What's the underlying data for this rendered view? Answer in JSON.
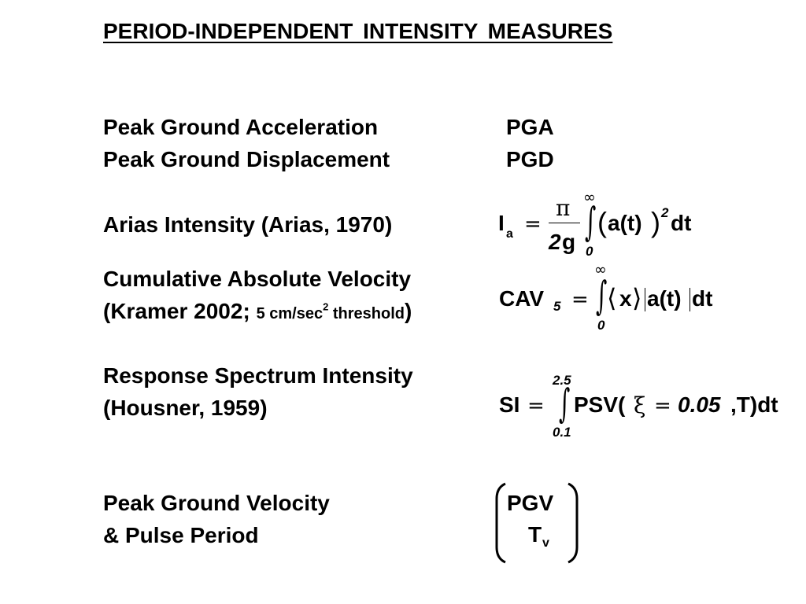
{
  "title": "PERIOD-INDEPENDENT  INTENSITY  MEASURES",
  "rows": {
    "pga": {
      "label": "Peak Ground Acceleration",
      "symbol": "PGA"
    },
    "pgd": {
      "label": "Peak Ground Displacement",
      "symbol": "PGD"
    },
    "arias": {
      "label": "Arias Intensity (Arias, 1970)",
      "lhs": "I",
      "lhs_sub": "a",
      "equals": "=",
      "numerator": "π",
      "denominator_num": "2",
      "denominator_var": "g",
      "upper": "∞",
      "lower": "0",
      "integral": "∫",
      "integrand_open": "(",
      "integrand_body": "a(t)",
      "integrand_close": ")",
      "power": "2",
      "dt": "dt"
    },
    "cav": {
      "label_line1": "Cumulative Absolute Velocity",
      "label_line2_prefix": "(Kramer 2002; ",
      "label_line2_small": "5 cm/sec",
      "label_line2_sup": "2",
      "label_line2_small2": " threshold",
      "label_line2_suffix": ")",
      "lhs": "CAV",
      "lhs_sub": "5",
      "equals": "=",
      "upper": "∞",
      "lower": "0",
      "integral": "∫",
      "angle_open": "⟨",
      "x": "x",
      "angle_close": "⟩",
      "abs_body": "a(t)",
      "dt": "dt"
    },
    "si": {
      "label_line1": "Response Spectrum Intensity",
      "label_line2": "(Housner, 1959)",
      "lhs": "SI",
      "equals": "=",
      "upper": "2.5",
      "lower": "0.1",
      "integral": "∫",
      "psv": "PSV(",
      "xi": "ξ",
      "equals2": "=",
      "damping": "0.05",
      "rest": ",T)dt"
    },
    "pgv": {
      "label_line1": "Peak Ground Velocity",
      "label_line2": "& Pulse Period",
      "symbol1": "PGV",
      "symbol2": "T",
      "symbol2_sub": "v"
    }
  }
}
